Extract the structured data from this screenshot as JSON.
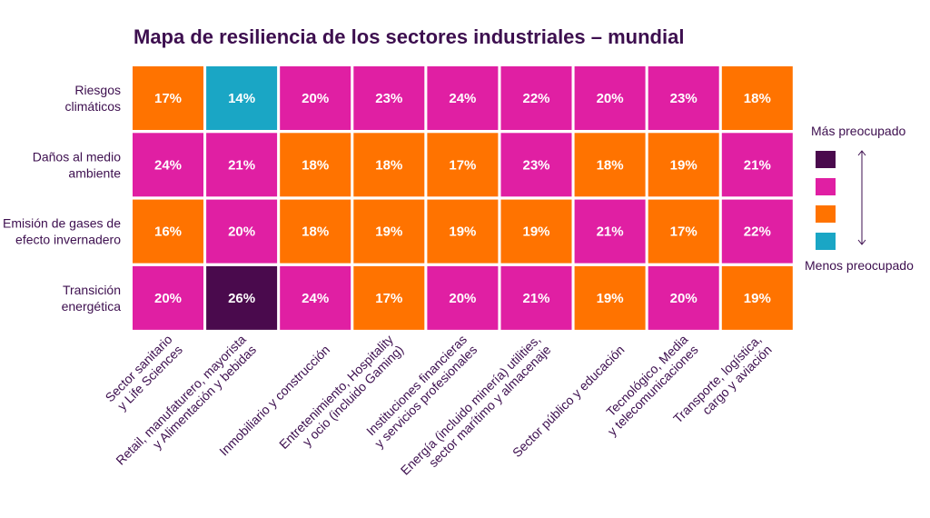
{
  "chart_data": {
    "type": "heatmap",
    "title": "Mapa de resiliencia de los sectores industriales – mundial",
    "rows": [
      [
        "Riesgos",
        "climáticos"
      ],
      [
        "Daños al medio",
        "ambiente"
      ],
      [
        "Emisión de gases de",
        "efecto invernadero"
      ],
      [
        "Transición",
        "energética"
      ]
    ],
    "columns": [
      [
        "Sector sanitario",
        "y Life Sciences"
      ],
      [
        "Retail, manufaturero, mayorista",
        "y Alimentación y bebidas"
      ],
      [
        "Inmobiliario y construcción"
      ],
      [
        "Entretenimiento, Hospitality",
        "y ocio (incluido Gaming)"
      ],
      [
        "Instituciones financieras",
        "y servicios profesionales"
      ],
      [
        "Energía (incluido minería) utilities,",
        "sector marítimo y almacenaje"
      ],
      [
        "Sector público y educación"
      ],
      [
        "Tecnológico, Media",
        "y telecomunicaciones"
      ],
      [
        "Transporte, logística,",
        "cargo y aviación"
      ]
    ],
    "values": [
      [
        17,
        14,
        20,
        23,
        24,
        22,
        20,
        23,
        18
      ],
      [
        24,
        21,
        18,
        18,
        17,
        23,
        18,
        19,
        21
      ],
      [
        16,
        20,
        18,
        19,
        19,
        19,
        21,
        17,
        22
      ],
      [
        20,
        26,
        24,
        17,
        20,
        21,
        19,
        20,
        19
      ]
    ],
    "levels": [
      [
        2,
        3,
        1,
        1,
        1,
        1,
        1,
        1,
        2
      ],
      [
        1,
        1,
        2,
        2,
        2,
        1,
        2,
        2,
        1
      ],
      [
        2,
        1,
        2,
        2,
        2,
        2,
        1,
        2,
        1
      ],
      [
        1,
        0,
        1,
        2,
        1,
        1,
        2,
        1,
        2
      ]
    ],
    "value_suffix": "%",
    "legend": {
      "top_label": "Más preocupado",
      "bottom_label": "Menos preocupado",
      "colors": [
        "#4a0a4d",
        "#e01fa3",
        "#ff7300",
        "#1aa6c5"
      ]
    }
  }
}
